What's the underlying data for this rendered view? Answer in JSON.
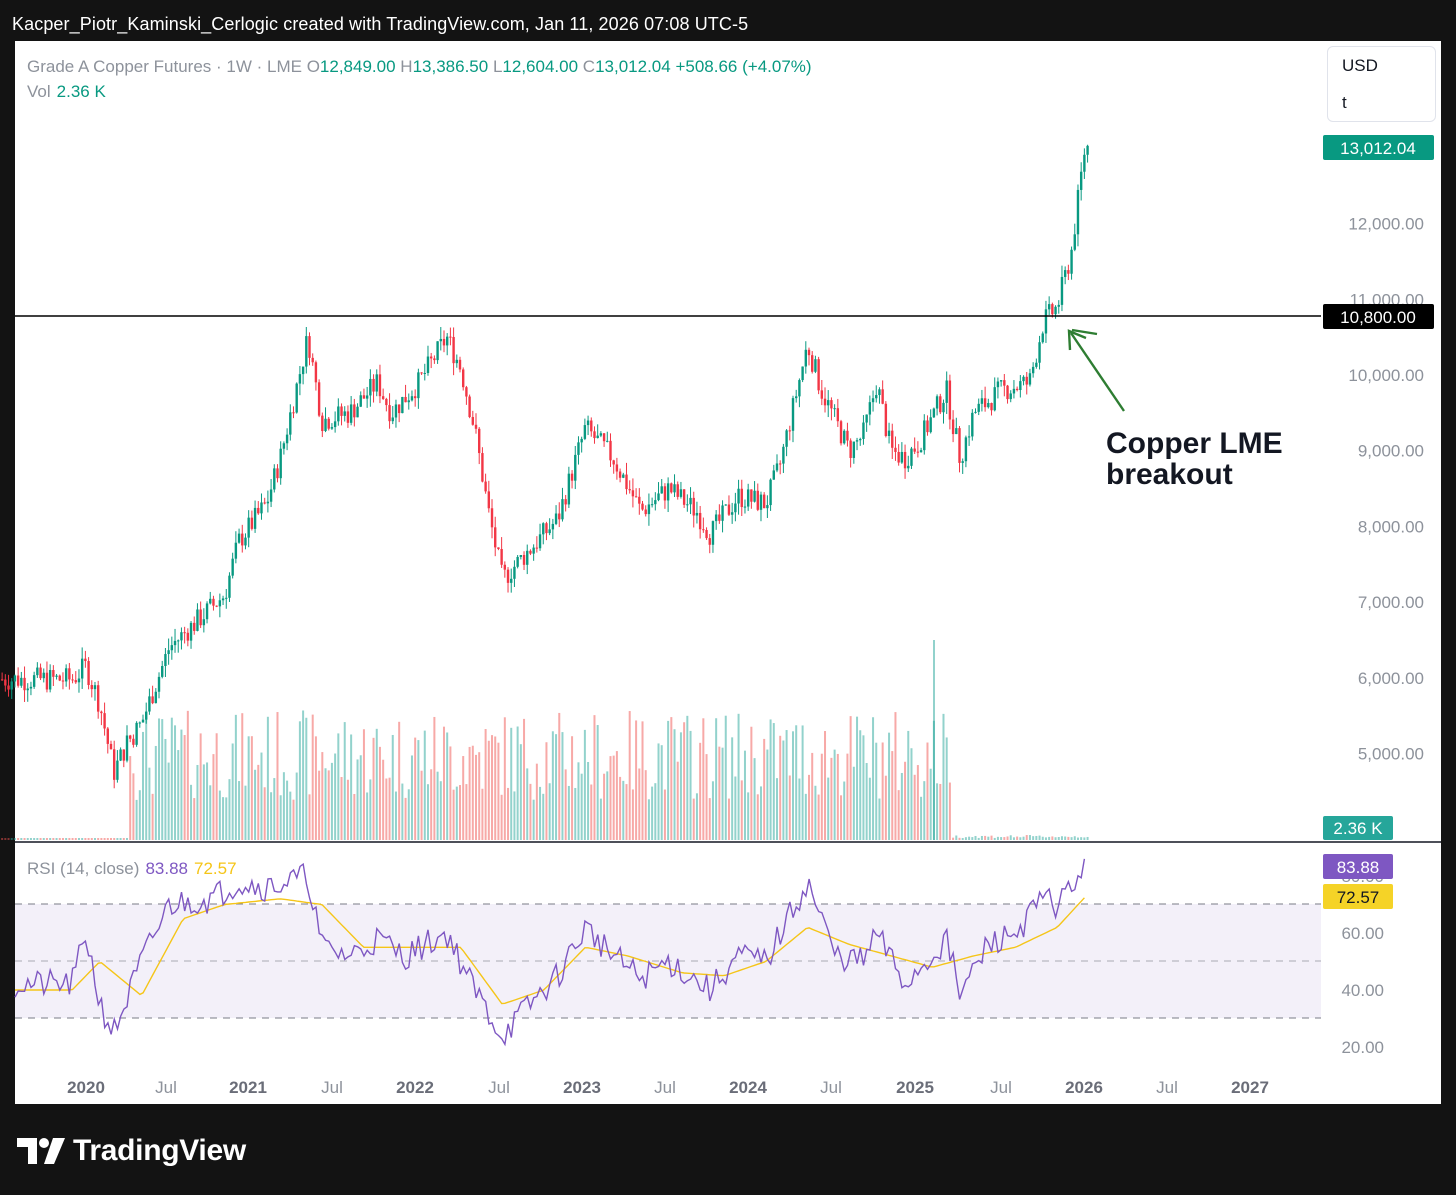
{
  "caption": "Kacper_Piotr_Kaminski_Cerlogic created with TradingView.com, Jan 11, 2026 07:08 UTC-5",
  "legend": {
    "symbol": "Grade A Copper Futures · 1W · LME",
    "o_label": "O",
    "o_value": "12,849.00",
    "h_label": "H",
    "h_value": "13,386.50",
    "l_label": "L",
    "l_value": "12,604.00",
    "c_label": "C",
    "c_value": "13,012.04",
    "change": "+508.66 (+4.07%)",
    "vol_label": "Vol",
    "vol_value": "2.36 K"
  },
  "unit_menu": {
    "currency": "USD",
    "unit": "t"
  },
  "annotation": {
    "line1": "Copper LME",
    "line2": "breakout"
  },
  "price_badges": {
    "last": "13,012.04",
    "level": "10,800.00",
    "volume": "2.36 K"
  },
  "rsi_legend": {
    "label": "RSI (14, close)",
    "rsi": "83.88",
    "ma": "72.57"
  },
  "rsi_badges": {
    "rsi": "83.88",
    "ma": "72.57"
  },
  "brand": "TradingView",
  "colors": {
    "up": "#089981",
    "down": "#f23645",
    "rsi": "#7e57c2",
    "rsi_ma": "#f5c518",
    "band": "#7e57c2"
  },
  "chart_data": {
    "type": "candlestick",
    "symbol": "Grade A Copper Futures",
    "interval": "1W",
    "exchange": "LME",
    "price_axis": {
      "ticks": [
        "5,000.00",
        "6,000.00",
        "7,000.00",
        "8,000.00",
        "9,000.00",
        "10,000.00",
        "11,000.00",
        "12,000.00"
      ],
      "range": [
        4000,
        13600
      ]
    },
    "time_axis": [
      "2020",
      "Jul",
      "2021",
      "Jul",
      "2022",
      "Jul",
      "2023",
      "Jul",
      "2024",
      "Jul",
      "2025",
      "Jul",
      "2026",
      "Jul",
      "2027"
    ],
    "horizontal_level": 10800,
    "price_path": [
      [
        "2019-12",
        5980
      ],
      [
        "2020-01",
        6150
      ],
      [
        "2020-02",
        5650
      ],
      [
        "2020-03",
        4750
      ],
      [
        "2020-04",
        5150
      ],
      [
        "2020-05",
        5400
      ],
      [
        "2020-06",
        5900
      ],
      [
        "2020-07",
        6400
      ],
      [
        "2020-09",
        6750
      ],
      [
        "2020-11",
        7100
      ],
      [
        "2020-12",
        7800
      ],
      [
        "2021-02",
        8300
      ],
      [
        "2021-03",
        8900
      ],
      [
        "2021-05",
        10500
      ],
      [
        "2021-06",
        9400
      ],
      [
        "2021-08",
        9500
      ],
      [
        "2021-10",
        9900
      ],
      [
        "2021-11",
        9500
      ],
      [
        "2022-01",
        9900
      ],
      [
        "2022-03",
        10500
      ],
      [
        "2022-04",
        10100
      ],
      [
        "2022-05",
        9300
      ],
      [
        "2022-06",
        8200
      ],
      [
        "2022-07",
        7300
      ],
      [
        "2022-09",
        7700
      ],
      [
        "2022-11",
        8100
      ],
      [
        "2023-01",
        9300
      ],
      [
        "2023-03",
        8900
      ],
      [
        "2023-05",
        8200
      ],
      [
        "2023-07",
        8500
      ],
      [
        "2023-09",
        8200
      ],
      [
        "2023-10",
        7900
      ],
      [
        "2023-12",
        8400
      ],
      [
        "2024-02",
        8300
      ],
      [
        "2024-03",
        8800
      ],
      [
        "2024-05",
        10400
      ],
      [
        "2024-06",
        9800
      ],
      [
        "2024-08",
        9000
      ],
      [
        "2024-09",
        9200
      ],
      [
        "2024-10",
        9900
      ],
      [
        "2024-11",
        9000
      ],
      [
        "2024-12",
        8900
      ],
      [
        "2025-01",
        9100
      ],
      [
        "2025-03",
        9800
      ],
      [
        "2025-04",
        8900
      ],
      [
        "2025-05",
        9500
      ],
      [
        "2025-07",
        9800
      ],
      [
        "2025-09",
        9900
      ],
      [
        "2025-10",
        10700
      ],
      [
        "2025-11",
        10900
      ],
      [
        "2025-12",
        11600
      ],
      [
        "2026-01",
        13012
      ]
    ],
    "volume": {
      "last": 2.36,
      "unit": "K"
    },
    "rsi": {
      "period": 14,
      "source": "close",
      "last": 83.88,
      "ma_last": 72.57,
      "axis_ticks": [
        "20.00",
        "40.00",
        "60.00",
        "80.00"
      ],
      "bands": [
        30,
        50,
        70
      ],
      "path": [
        [
          "2019-12",
          42
        ],
        [
          "2020-01",
          60
        ],
        [
          "2020-02",
          35
        ],
        [
          "2020-03",
          25
        ],
        [
          "2020-05",
          50
        ],
        [
          "2020-07",
          70
        ],
        [
          "2020-10",
          72
        ],
        [
          "2020-12",
          78
        ],
        [
          "2021-02",
          76
        ],
        [
          "2021-05",
          80
        ],
        [
          "2021-06",
          55
        ],
        [
          "2021-08",
          52
        ],
        [
          "2021-10",
          58
        ],
        [
          "2021-12",
          52
        ],
        [
          "2022-03",
          60
        ],
        [
          "2022-05",
          40
        ],
        [
          "2022-07",
          24
        ],
        [
          "2022-09",
          35
        ],
        [
          "2022-11",
          45
        ],
        [
          "2023-01",
          62
        ],
        [
          "2023-03",
          52
        ],
        [
          "2023-05",
          44
        ],
        [
          "2023-07",
          50
        ],
        [
          "2023-10",
          40
        ],
        [
          "2023-12",
          52
        ],
        [
          "2024-02",
          50
        ],
        [
          "2024-05",
          78
        ],
        [
          "2024-07",
          52
        ],
        [
          "2024-09",
          50
        ],
        [
          "2024-10",
          60
        ],
        [
          "2024-12",
          42
        ],
        [
          "2025-02",
          52
        ],
        [
          "2025-03",
          58
        ],
        [
          "2025-04",
          38
        ],
        [
          "2025-06",
          56
        ],
        [
          "2025-08",
          60
        ],
        [
          "2025-10",
          72
        ],
        [
          "2025-11",
          70
        ],
        [
          "2025-12",
          76
        ],
        [
          "2026-01",
          84
        ]
      ],
      "ma_path": [
        [
          "2019-12",
          40
        ],
        [
          "2020-02",
          50
        ],
        [
          "2020-05",
          38
        ],
        [
          "2020-08",
          65
        ],
        [
          "2020-11",
          70
        ],
        [
          "2021-03",
          72
        ],
        [
          "2021-06",
          70
        ],
        [
          "2021-09",
          55
        ],
        [
          "2022-01",
          55
        ],
        [
          "2022-04",
          55
        ],
        [
          "2022-07",
          35
        ],
        [
          "2022-10",
          40
        ],
        [
          "2023-01",
          55
        ],
        [
          "2023-04",
          52
        ],
        [
          "2023-08",
          46
        ],
        [
          "2023-11",
          45
        ],
        [
          "2024-02",
          50
        ],
        [
          "2024-05",
          62
        ],
        [
          "2024-08",
          56
        ],
        [
          "2024-11",
          52
        ],
        [
          "2025-02",
          48
        ],
        [
          "2025-05",
          52
        ],
        [
          "2025-08",
          55
        ],
        [
          "2025-11",
          62
        ],
        [
          "2026-01",
          72.57
        ]
      ]
    }
  }
}
